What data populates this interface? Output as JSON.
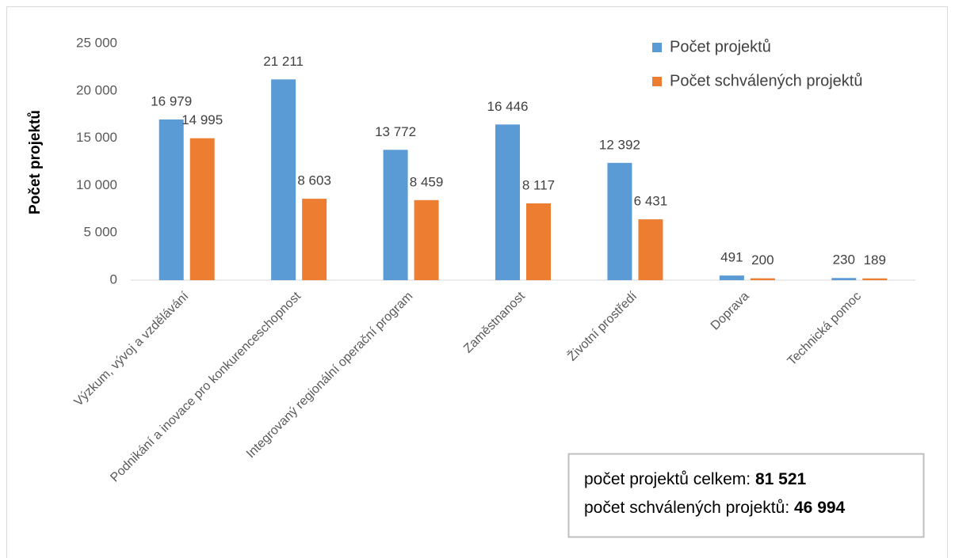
{
  "chart_data": {
    "type": "bar",
    "y_label": "Počet projektů",
    "categories": [
      "Výzkum, vývoj a vzdělávání",
      "Podnikání a inovace pro konkurenceschopnost",
      "Integrovaný regionální operační program",
      "Zaměstnanost",
      "Životní prostředí",
      "Doprava",
      "Technická pomoc"
    ],
    "series": [
      {
        "name": "Počet projektů",
        "color": "#5b9bd5",
        "values": [
          16979,
          21211,
          13772,
          16446,
          12392,
          491,
          230
        ],
        "value_labels": [
          "16 979",
          "21 211",
          "13 772",
          "16 446",
          "12 392",
          "491",
          "230"
        ]
      },
      {
        "name": "Počet schválených projektů",
        "color": "#ed7d31",
        "values": [
          14995,
          8603,
          8459,
          8117,
          6431,
          200,
          189
        ],
        "value_labels": [
          "14 995",
          "8 603",
          "8 459",
          "8 117",
          "6 431",
          "200",
          "189"
        ]
      }
    ],
    "ylim": [
      0,
      25000
    ],
    "yticks": [
      0,
      {
        "value": 5000,
        "label": "5 000"
      },
      {
        "value": 10000,
        "label": "10 000"
      },
      {
        "value": 15000,
        "label": "15 000"
      },
      {
        "value": 20000,
        "label": "20 000"
      },
      {
        "value": 25000,
        "label": "25 000"
      }
    ],
    "legend": "top-right",
    "annotations": [
      {
        "text": "počet projektů celkem:",
        "value": 81521,
        "value_label": "81 521"
      },
      {
        "text": "počet schválených projektů:",
        "value": 46994,
        "value_label": "46 994"
      }
    ]
  }
}
